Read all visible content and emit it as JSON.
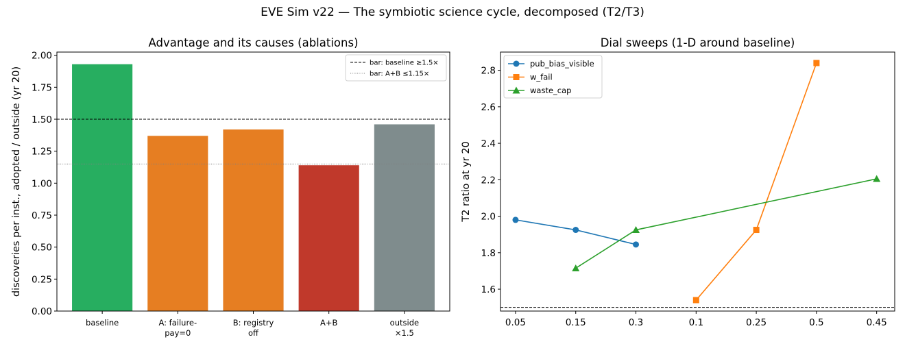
{
  "figure": {
    "suptitle": "EVE Sim v22 — The symbiotic science cycle, decomposed (T2/T3)"
  },
  "chart_data": [
    {
      "type": "bar",
      "title": "Advantage and its causes (ablations)",
      "xlabel": "",
      "ylabel": "discoveries per inst., adopted / outside (yr 20)",
      "categories": [
        [
          "baseline"
        ],
        [
          "A: failure-",
          "pay=0"
        ],
        [
          "B: registry",
          "off"
        ],
        [
          "A+B"
        ],
        [
          "outside",
          "×1.5"
        ]
      ],
      "values": [
        1.93,
        1.37,
        1.42,
        1.14,
        1.46
      ],
      "colors": [
        "#27ae60",
        "#e67e22",
        "#e67e22",
        "#c0392b",
        "#7f8c8d"
      ],
      "ylim": [
        0,
        2.025
      ],
      "yticks": [
        "0.00",
        "0.25",
        "0.50",
        "0.75",
        "1.00",
        "1.25",
        "1.50",
        "1.75",
        "2.00"
      ],
      "hlines": [
        {
          "y": 1.5,
          "style": "dashed",
          "color": "#000000",
          "label": "bar: baseline ≥1.5×"
        },
        {
          "y": 1.15,
          "style": "dotted",
          "color": "#808080",
          "label": "bar: A+B ≤1.15×"
        }
      ],
      "legend": "top-right",
      "grid": false
    },
    {
      "type": "line",
      "title": "Dial sweeps (1-D around baseline)",
      "xlabel": "",
      "ylabel": "T2 ratio at yr 20",
      "xticks": [
        "0.05",
        "0.15",
        "0.3",
        "0.1",
        "0.25",
        "0.5",
        "0.45"
      ],
      "xlim": [
        -0.25,
        6.3
      ],
      "ylim": [
        1.48,
        2.9
      ],
      "yticks": [
        "1.6",
        "1.8",
        "2.0",
        "2.2",
        "2.4",
        "2.6",
        "2.8"
      ],
      "series": [
        {
          "name": "pub_bias_visible",
          "color": "#1f77b4",
          "marker": "circle",
          "x": [
            0,
            1,
            2
          ],
          "y": [
            1.98,
            1.925,
            1.845
          ]
        },
        {
          "name": "w_fail",
          "color": "#ff7f0e",
          "marker": "square",
          "x": [
            3,
            4,
            5
          ],
          "y": [
            1.54,
            1.925,
            2.84
          ]
        },
        {
          "name": "waste_cap",
          "color": "#2ca02c",
          "marker": "triangle",
          "x": [
            1,
            2,
            6
          ],
          "y": [
            1.715,
            1.925,
            2.205
          ]
        }
      ],
      "hlines": [
        {
          "y": 1.5,
          "style": "dashed",
          "color": "#000000"
        }
      ],
      "legend": "top-left",
      "grid": false
    }
  ]
}
